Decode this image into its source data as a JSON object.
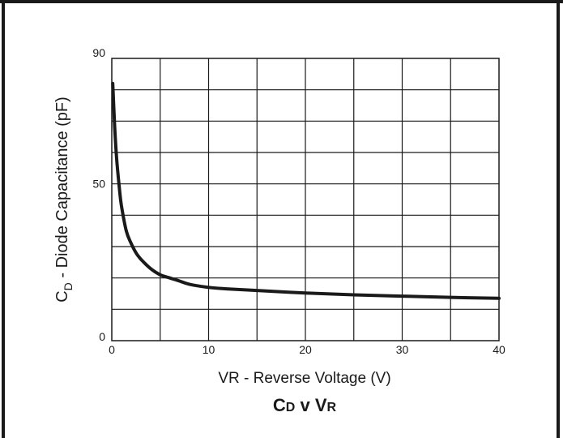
{
  "chart_data": {
    "type": "line",
    "title_parts": [
      "C",
      "D",
      " v ",
      "V",
      "R"
    ],
    "xlabel": "VR - Reverse Voltage (V)",
    "ylabel_parts": [
      "C",
      "D",
      " - Diode Capacitance (pF)"
    ],
    "x_ticks": [
      "0",
      "10",
      "20",
      "30",
      "40"
    ],
    "y_ticks": [
      "0",
      "50",
      "90"
    ],
    "xlim": [
      0,
      40
    ],
    "ylim": [
      0,
      90
    ],
    "x_grid_step": 5,
    "y_grid_step": 10,
    "grid": true,
    "series": [
      {
        "color": "#1a1a1a",
        "x": [
          0.1,
          0.3,
          0.5,
          0.8,
          1.0,
          1.5,
          2.0,
          2.5,
          3.0,
          4.0,
          5.0,
          6.0,
          7.0,
          8.0,
          10.0,
          12.0,
          15.0,
          20.0,
          25.0,
          30.0,
          35.0,
          40.0
        ],
        "y": [
          82,
          68,
          58,
          48,
          43,
          35,
          31,
          28,
          26,
          23,
          21,
          20,
          19,
          18,
          17,
          16.5,
          16,
          15.2,
          14.6,
          14.2,
          13.8,
          13.5
        ]
      }
    ]
  }
}
